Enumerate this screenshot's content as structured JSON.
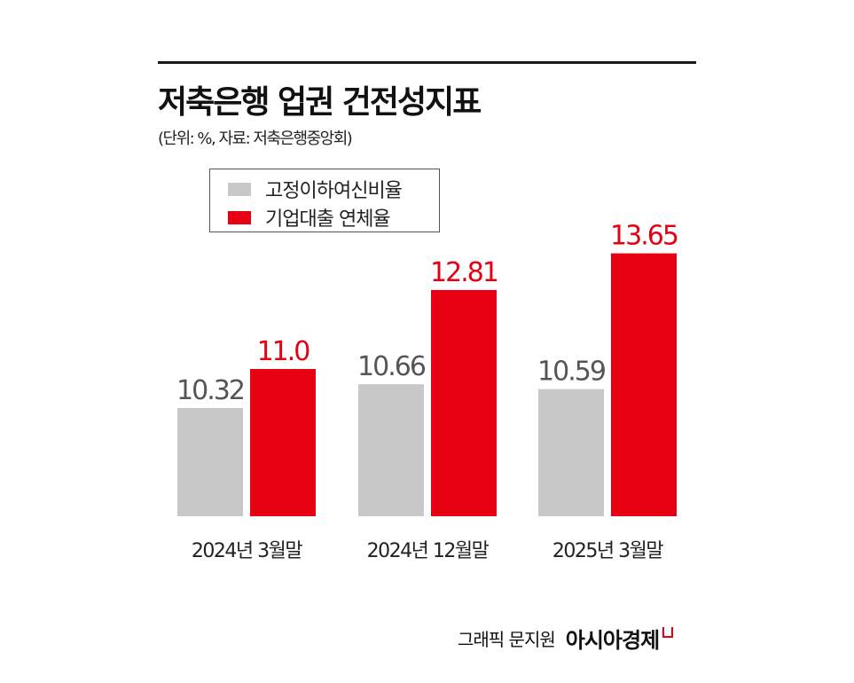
{
  "title": "저축은행 업권 건전성지표",
  "subtitle": "(단위: %, 자료: 저축은행중앙회)",
  "credit": {
    "text": "그래픽 문지원",
    "brand": "아시아경제"
  },
  "colors": {
    "gray": "#c8c8c8",
    "red": "#e60012",
    "gray_label": "#555555"
  },
  "chart_data": {
    "type": "bar",
    "categories": [
      "2024년 3월말",
      "2024년 12월말",
      "2025년 3월말"
    ],
    "series": [
      {
        "name": "고정이하여신비율",
        "values": [
          10.32,
          10.66,
          10.59
        ],
        "labels": [
          "10.32",
          "10.66",
          "10.59"
        ],
        "color": "#c8c8c8"
      },
      {
        "name": "기업대출 연체율",
        "values": [
          11.0,
          12.81,
          13.65
        ],
        "labels": [
          "11.0",
          "12.81",
          "13.65"
        ],
        "color": "#e60012"
      }
    ],
    "legend": "top-left",
    "grid": false
  }
}
